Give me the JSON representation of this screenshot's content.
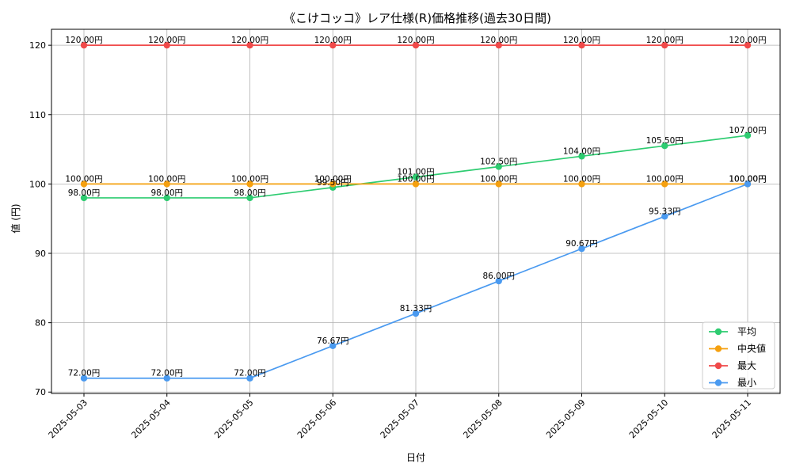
{
  "chart_data": {
    "type": "line",
    "title": "《こけコッコ》レア仕様(R)価格推移(過去30日間)",
    "xlabel": "日付",
    "ylabel": "値 (円)",
    "x": [
      "2025-05-03",
      "2025-05-04",
      "2025-05-05",
      "2025-05-06",
      "2025-05-07",
      "2025-05-08",
      "2025-05-09",
      "2025-05-10",
      "2025-05-11"
    ],
    "ylim": [
      69.8,
      122.3
    ],
    "yticks": [
      70,
      80,
      90,
      100,
      110,
      120
    ],
    "grid": true,
    "legend_position": "bottom-right",
    "label_suffix": "円",
    "series": [
      {
        "name": "平均",
        "color": "#2ecc71",
        "values": [
          98.0,
          98.0,
          98.0,
          99.5,
          101.0,
          102.5,
          104.0,
          105.5,
          107.0
        ]
      },
      {
        "name": "中央値",
        "color": "#f5a00f",
        "values": [
          100.0,
          100.0,
          100.0,
          100.0,
          100.0,
          100.0,
          100.0,
          100.0,
          100.0
        ]
      },
      {
        "name": "最大",
        "color": "#f04a4a",
        "values": [
          120.0,
          120.0,
          120.0,
          120.0,
          120.0,
          120.0,
          120.0,
          120.0,
          120.0
        ]
      },
      {
        "name": "最小",
        "color": "#4a9af0",
        "values": [
          72.0,
          72.0,
          72.0,
          76.67,
          81.33,
          86.0,
          90.67,
          95.33,
          100.0
        ]
      }
    ]
  }
}
